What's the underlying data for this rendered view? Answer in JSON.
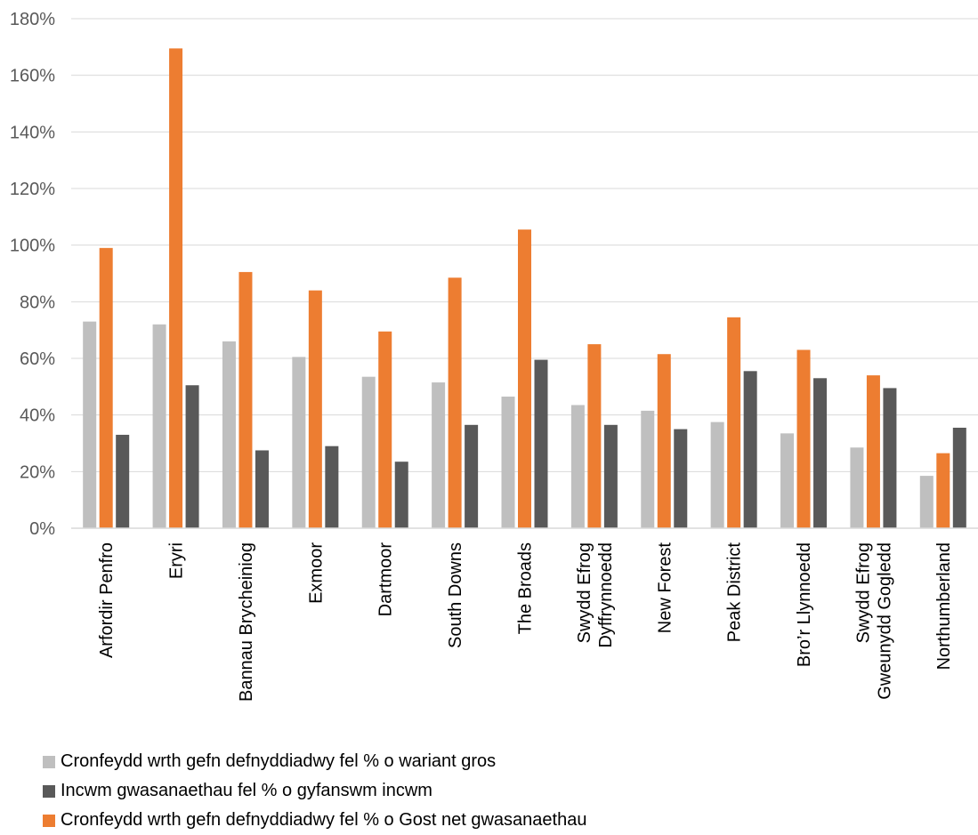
{
  "chart_data": {
    "type": "bar",
    "categories": [
      [
        "Arfordir Penfro"
      ],
      [
        "Eryri"
      ],
      [
        "Bannau Brycheiniog"
      ],
      [
        "Exmoor"
      ],
      [
        "Dartmoor"
      ],
      [
        "South Downs"
      ],
      [
        "The Broads"
      ],
      [
        "Dyffrynnoedd",
        "Swydd Efrog"
      ],
      [
        "New Forest"
      ],
      [
        "Peak District"
      ],
      [
        "Bro’r Llynnoedd"
      ],
      [
        "Gweunydd Gogledd",
        "Swydd Efrog"
      ],
      [
        "Northumberland"
      ]
    ],
    "series": [
      {
        "name": "Cronfeydd wrth gefn defnyddiadwy fel % o wariant gros",
        "color": "#bfbfbf",
        "values": [
          73,
          72,
          66,
          60.5,
          53.5,
          51.5,
          46.5,
          43.5,
          41.5,
          37.5,
          33.5,
          28.5,
          18.5
        ]
      },
      {
        "name": "Cronfeydd wrth gefn defnyddiadwy fel % o Gost net gwasanaethau",
        "color": "#ed7d31",
        "values": [
          99,
          169.5,
          90.5,
          84,
          69.5,
          88.5,
          105.5,
          65,
          61.5,
          74.5,
          63,
          54,
          26.5
        ]
      },
      {
        "name": "Incwm gwasanaethau fel % o gyfanswm incwm",
        "color": "#595959",
        "values": [
          33,
          50.5,
          27.5,
          29,
          23.5,
          36.5,
          59.5,
          36.5,
          35,
          55.5,
          53,
          49.5,
          35.5
        ]
      }
    ],
    "legend_order": [
      0,
      2,
      1
    ],
    "y_ticks": [
      "0%",
      "20%",
      "40%",
      "60%",
      "80%",
      "100%",
      "120%",
      "140%",
      "160%",
      "180%"
    ],
    "ylim": [
      0,
      180
    ],
    "grid": true,
    "legend_position": "bottom-left"
  }
}
